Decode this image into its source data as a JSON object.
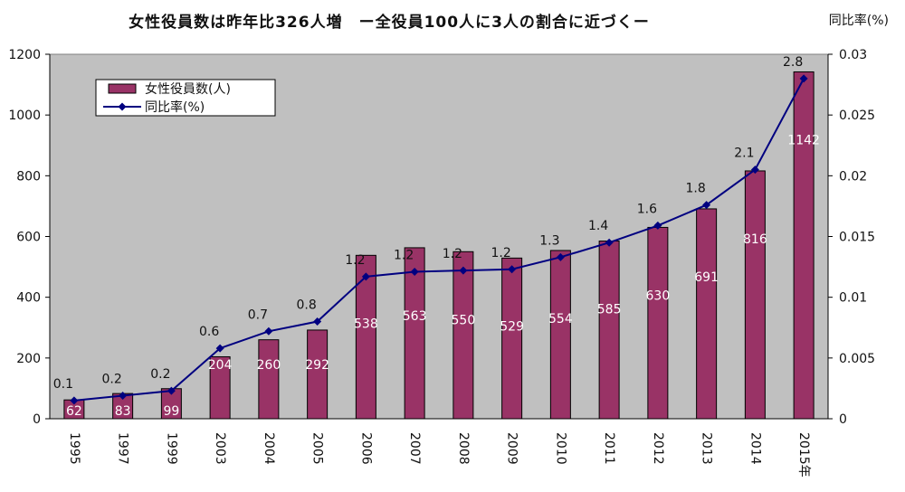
{
  "title": "女性役員数は昨年比326人増　ー全役員100人に3人の割合に近づくー",
  "right_axis_title": "同比率(%)",
  "colors": {
    "bar": "#993366",
    "line": "#000080",
    "plot_bg": "#c0c0c0"
  },
  "chart_data": {
    "type": "bar",
    "title": "女性役員数は昨年比326人増　ー全役員100人に3人の割合に近づくー",
    "categories": [
      "1995",
      "1997",
      "1999",
      "2003",
      "2004",
      "2005",
      "2006",
      "2007",
      "2008",
      "2009",
      "2010",
      "2011",
      "2012",
      "2013",
      "2014",
      "2015年"
    ],
    "series": [
      {
        "name": "女性役員数(人)",
        "type": "bar",
        "axis": "left",
        "values": [
          62,
          83,
          99,
          204,
          260,
          292,
          538,
          563,
          550,
          529,
          554,
          585,
          630,
          691,
          816,
          1142
        ]
      },
      {
        "name": "同比率(%)",
        "type": "line",
        "axis": "right",
        "values": [
          0.0015,
          0.0019,
          0.0023,
          0.0058,
          0.0072,
          0.008,
          0.0117,
          0.0121,
          0.0122,
          0.0123,
          0.0133,
          0.0145,
          0.0159,
          0.0176,
          0.0205,
          0.028
        ],
        "point_labels": [
          "0.1",
          "0.2",
          "0.2",
          "0.6",
          "0.7",
          "0.8",
          "1.2",
          "1.2",
          "1.2",
          "1.2",
          "1.3",
          "1.4",
          "1.6",
          "1.8",
          "2.1",
          "2.8"
        ]
      }
    ],
    "ylim_left": [
      0,
      1200
    ],
    "yticks_left": [
      "0",
      "200",
      "400",
      "600",
      "800",
      "1000",
      "1200"
    ],
    "ylim_right": [
      0,
      0.03
    ],
    "yticks_right": [
      "0",
      "0.005",
      "0.01",
      "0.015",
      "0.02",
      "0.025",
      "0.03"
    ],
    "ylabel_right": "同比率(%)",
    "legend_position": "top-left",
    "grid": false
  }
}
